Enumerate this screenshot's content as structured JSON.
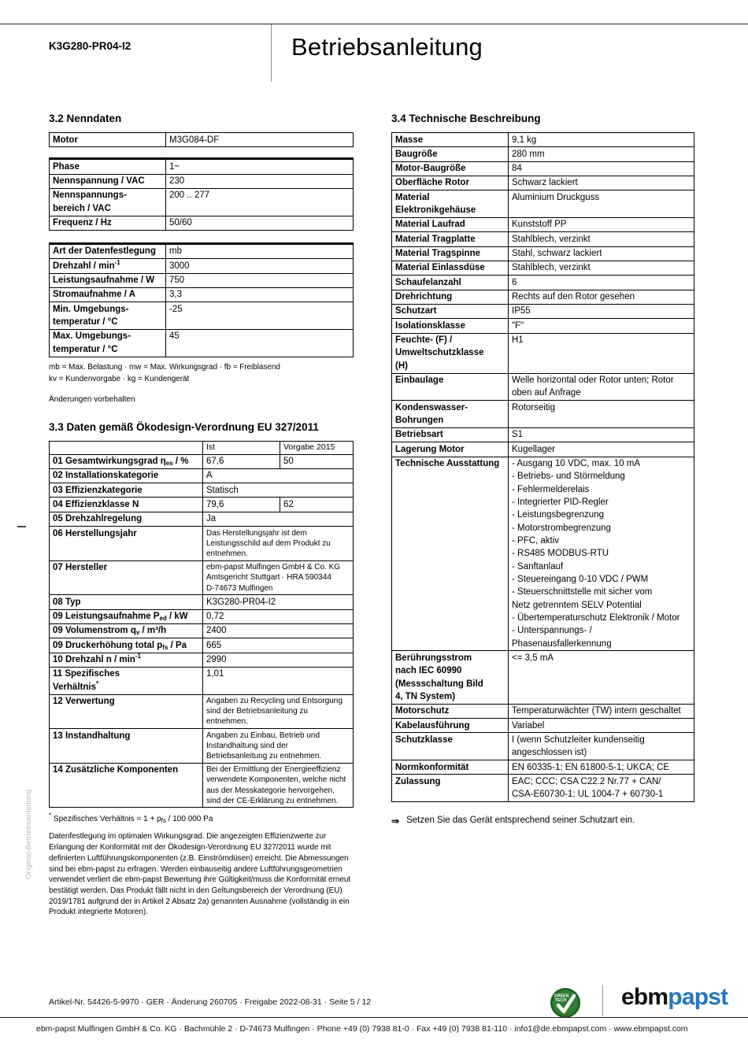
{
  "header": {
    "product_code": "K3G280-PR04-I2",
    "title": "Betriebsanleitung"
  },
  "side": {
    "marginal_note": "Original-Betriebsanleitung"
  },
  "section_nenndaten": {
    "title": "3.2 Nenndaten",
    "motor_table": [
      {
        "label": "Motor",
        "value": "M3G084-DF"
      }
    ],
    "supply_table": [
      {
        "label": "Phase",
        "value": "1~"
      },
      {
        "label": "Nennspannung / VAC",
        "value": "230"
      },
      {
        "label": "Nennspannungs-<br>bereich / VAC",
        "value": "200 .. 277"
      },
      {
        "label": "Frequenz / Hz",
        "value": "50/60"
      }
    ],
    "data_table": [
      {
        "label": "Art der Datenfestlegung",
        "value": "mb"
      },
      {
        "label": "Drehzahl / min<sup>-1</sup>",
        "value": "3000"
      },
      {
        "label": "Leistungsaufnahme / W",
        "value": "750"
      },
      {
        "label": "Stromaufnahme / A",
        "value": "3,3"
      },
      {
        "label": "Min. Umgebungs-<br>temperatur / °C",
        "value": "-25"
      },
      {
        "label": "Max. Umgebungs-<br>temperatur / °C",
        "value": "45"
      }
    ],
    "abbreviations": [
      "mb = Max. Belastung · mw = Max. Wirkungsgrad · fb = Freiblasend",
      "kv = Kundenvorgabe · kg = Kundengerät"
    ],
    "changes_note": "Änderungen vorbehalten"
  },
  "section_oekodesign": {
    "title": "3.3 Daten gemäß Ökodesign-Verordnung EU 327/2011",
    "table_rows": [
      {
        "label": "",
        "ist": "Ist",
        "vorgabe": "Vorgabe 2015",
        "header": true
      },
      {
        "label": "01 Gesamtwirkungsgrad η<sub>es</sub> / %",
        "ist": "67,6",
        "vorgabe": "50"
      },
      {
        "label": "02 Installationskategorie",
        "ist": "A"
      },
      {
        "label": "03 Effizienzkategorie",
        "ist": "Statisch"
      },
      {
        "label": "04 Effizienzklasse N",
        "ist": "79,6",
        "vorgabe": "62"
      },
      {
        "label": "05 Drehzahlregelung",
        "ist": "Ja"
      },
      {
        "label": "06 Herstellungsjahr",
        "ist": "Das Herstellungsjahr ist dem Leistungsschild auf dem Produkt zu entnehmen.",
        "small": true
      },
      {
        "label": "07 Hersteller",
        "ist": "ebm-papst Mulfingen GmbH & Co. KG<br>Amtsgericht Stuttgart · HRA 590344<br>D-74673 Mulfingen",
        "small": true
      },
      {
        "label": "08 Typ",
        "ist": "K3G280-PR04-I2"
      },
      {
        "label": "09 Leistungsaufnahme P<sub>ed</sub> / kW",
        "ist": "0,72"
      },
      {
        "label": "09 Volumenstrom q<sub>v</sub> / m³/h",
        "ist": "2400"
      },
      {
        "label": "09 Druckerhöhung total p<sub>fs</sub> / Pa",
        "ist": "665"
      },
      {
        "label": "10 Drehzahl n / min<sup>-1</sup>",
        "ist": "2990"
      },
      {
        "label": "11 Spezifisches<br>Verhältnis<sup>*</sup>",
        "ist": "1,01"
      },
      {
        "label": "12 Verwertung",
        "ist": "Angaben zu Recycling und Entsorgung sind der Betriebsanleitung zu entnehmen.",
        "small": true
      },
      {
        "label": "13 Instandhaltung",
        "ist": "Angaben zu Einbau, Betrieb und Instandhaltung sind der Betriebsanleitung zu entnehmen.",
        "small": true
      },
      {
        "label": "14 Zusätzliche Komponenten",
        "ist": "Bei der Ermittlung der Energieeffizienz verwendete Komponenten, welche nicht aus der Messkategorie hervorgehen, sind der CE-Erklärung zu entnehmen.",
        "small": true
      }
    ],
    "footnote": "<sup>*</sup> Spezifisches Verhältnis = 1 + p<sub>fs</sub> / 100 000 Pa",
    "paragraph": "Datenfestlegung im optimalen Wirkungsgrad. Die angezeigten Effizienzwerte zur Erlangung der Konformität mit der Ökodesign-Verordnung EU 327/2011 wurde mit definierten Luftführungskomponenten (z.B. Einströmdüsen) erreicht. Die Abmessungen sind bei ebm-papst zu erfragen. Werden einbauseitig andere Luftführungsgeometrien verwendet verliert die ebm-papst Bewertung ihre Gültigkeit/muss die Konformität erneut bestätigt werden. Das Produkt fällt nicht in den Geltungsbereich der Verordnung (EU) 2019/1781 aufgrund der in Artikel 2 Absatz 2a) genannten Ausnahme (vollständig in ein Produkt integrierte Motoren)."
  },
  "section_technische": {
    "title": "3.4 Technische Beschreibung",
    "table_rows": [
      {
        "label": "Masse",
        "value": "9,1 kg"
      },
      {
        "label": "Baugröße",
        "value": "280 mm"
      },
      {
        "label": "Motor-Baugröße",
        "value": "84"
      },
      {
        "label": "Oberfläche Rotor",
        "value": "Schwarz lackiert"
      },
      {
        "label": "Material<br>Elektronikgehäuse",
        "value": "Aluminium Druckguss"
      },
      {
        "label": "Material Laufrad",
        "value": "Kunststoff PP"
      },
      {
        "label": "Material Tragplatte",
        "value": "Stahlblech, verzinkt"
      },
      {
        "label": "Material Tragspinne",
        "value": "Stahl, schwarz lackiert"
      },
      {
        "label": "Material Einlassdüse",
        "value": "Stahlblech, verzinkt"
      },
      {
        "label": "Schaufelanzahl",
        "value": "6"
      },
      {
        "label": "Drehrichtung",
        "value": "Rechts auf den Rotor gesehen"
      },
      {
        "label": "Schutzart",
        "value": "IP55"
      },
      {
        "label": "Isolationsklasse",
        "value": "\"F\""
      },
      {
        "label": "Feuchte- (F) /<br>Umweltschutzklasse<br>(H)",
        "value": "H1"
      },
      {
        "label": "Einbaulage",
        "value": "Welle horizontal oder Rotor unten; Rotor oben auf Anfrage"
      },
      {
        "label": "Kondenswasser-<br>Bohrungen",
        "value": "Rotorseitig"
      },
      {
        "label": "Betriebsart",
        "value": "S1"
      },
      {
        "label": "Lagerung Motor",
        "value": "Kugellager"
      },
      {
        "label": "Technische Ausstattung",
        "value": [
          "- Ausgang 10 VDC, max. 10 mA",
          "- Betriebs- und Störmeldung",
          "- Fehlermelderelais",
          "- Integrierter PID-Regler",
          "- Leistungsbegrenzung",
          "- Motorstrombegrenzung",
          "- PFC, aktiv",
          "- RS485 MODBUS-RTU",
          "- Sanftanlauf",
          "- Steuereingang 0-10 VDC / PWM",
          "- Steuerschnittstelle mit sicher vom<br>Netz getrenntem SELV Potential",
          "- Übertemperaturschutz Elektronik / Motor",
          "- Unterspannungs- /<br>Phasenausfallerkennung"
        ]
      },
      {
        "label": "Berührungsstrom<br>nach IEC 60990<br>(Messschaltung Bild<br>4, TN System)",
        "value": "<= 3,5 mA"
      },
      {
        "label": "Motorschutz",
        "value": "Temperaturwächter (TW) intern geschaltet"
      },
      {
        "label": "Kabelausführung",
        "value": "Variabel"
      },
      {
        "label": "Schutzklasse",
        "value": "I (wenn Schutzleiter kundenseitig angeschlossen ist)"
      },
      {
        "label": "Normkonformität",
        "value": "EN 60335-1; EN 61800-5-1; UKCA; CE"
      },
      {
        "label": "Zulassung",
        "value": "EAC; CCC; CSA C22.2 Nr.77 + CAN/<br>CSA-E60730-1; UL 1004-7 + 60730-1"
      }
    ],
    "instruction_arrow": "⇒",
    "instruction": "Setzen Sie das Gerät entsprechend seiner Schutzart ein."
  },
  "footer": {
    "info_line": "Artikel-Nr. 54426-5-9970 · GER · Änderung 260705 · Freigabe 2022-08-31 · Seite 5 / 12",
    "badge": {
      "line1": "GREEN",
      "line2": "TECH",
      "color": "#2e7d32"
    },
    "logo": {
      "part1": "ebm",
      "part2": "papst",
      "color2": "#2477bd"
    },
    "contact_line": "ebm-papst Mulfingen GmbH & Co. KG · Bachmühle 2 · D-74673 Mulfingen · Phone +49 (0) 7938 81-0 · Fax +49 (0) 7938 81-110 · info1@de.ebmpapst.com · www.ebmpapst.com"
  }
}
